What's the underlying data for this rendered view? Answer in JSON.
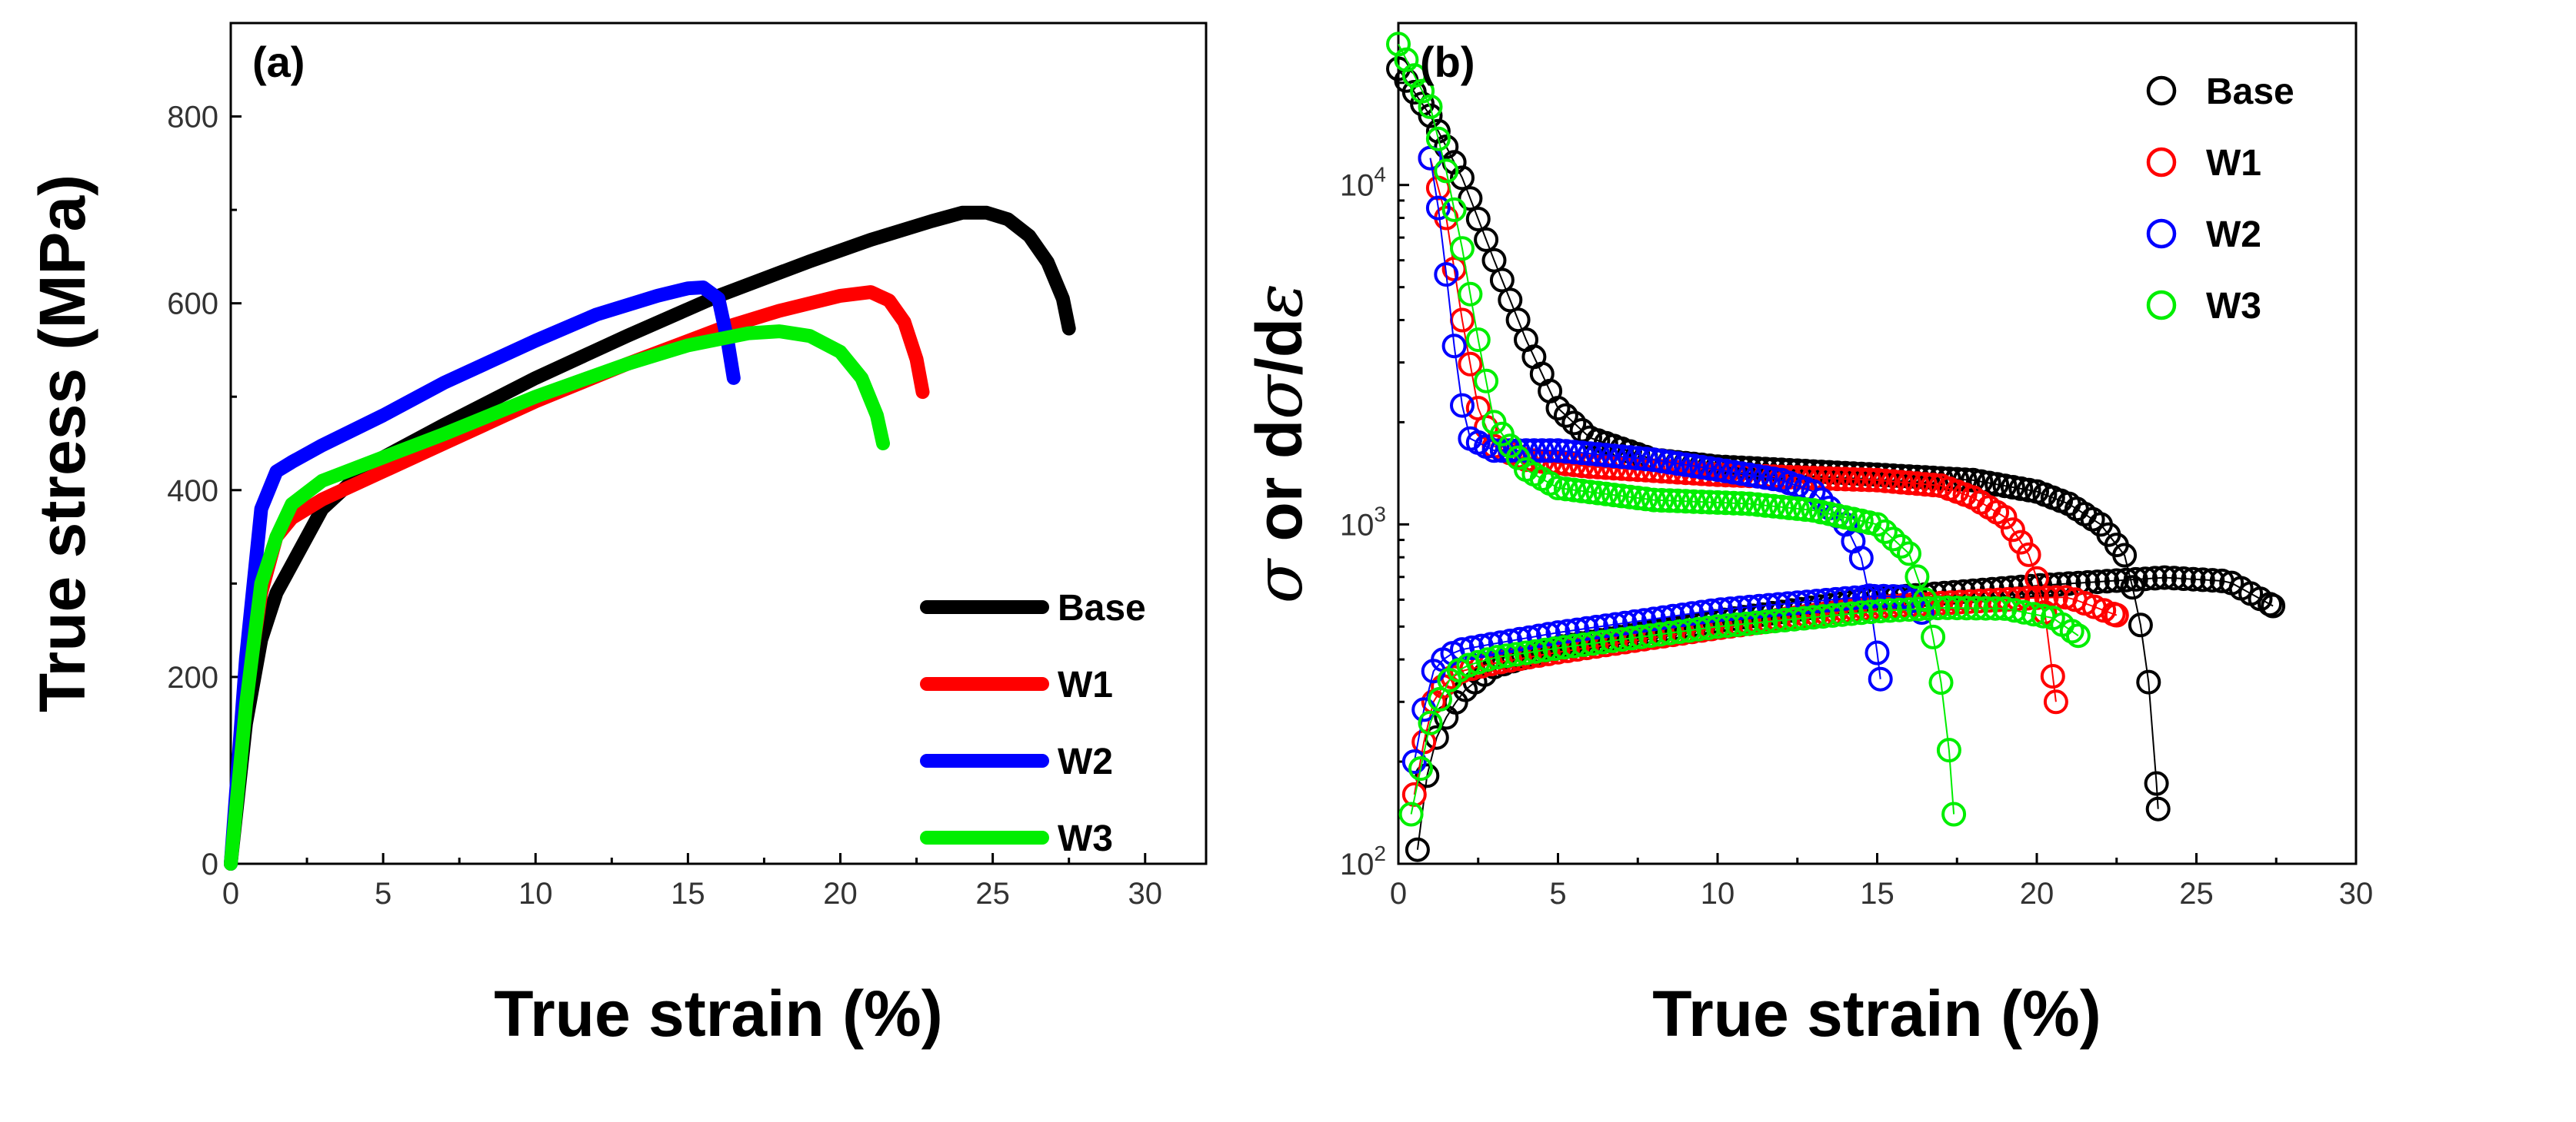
{
  "chart_data": [
    {
      "type": "line",
      "panel_label": "(a)",
      "xlabel": "True strain (%)",
      "ylabel": "True stress (MPa)",
      "xlim": [
        0,
        32
      ],
      "ylim": [
        0,
        900
      ],
      "x_ticks": [
        "0",
        "5",
        "10",
        "15",
        "20",
        "25",
        "30"
      ],
      "y_ticks": [
        "0",
        "200",
        "400",
        "600",
        "800"
      ],
      "legend_position": "bottom-right",
      "series": [
        {
          "name": "Base",
          "color": "#000000",
          "x": [
            0,
            0.5,
            1,
            1.5,
            2,
            3,
            4,
            5,
            7,
            10,
            13,
            16,
            19,
            21,
            23,
            24,
            24.8,
            25.5,
            26.2,
            26.8,
            27.3,
            27.5
          ],
          "y": [
            0,
            150,
            240,
            290,
            320,
            380,
            410,
            435,
            470,
            520,
            565,
            608,
            645,
            668,
            688,
            697,
            697,
            690,
            672,
            644,
            605,
            573
          ]
        },
        {
          "name": "W1",
          "color": "#ff0000",
          "x": [
            0,
            0.5,
            1,
            1.5,
            2,
            3,
            5,
            7,
            10,
            13,
            16,
            18,
            20,
            21,
            21.6,
            22.1,
            22.5,
            22.7
          ],
          "y": [
            0,
            180,
            290,
            350,
            370,
            390,
            420,
            450,
            495,
            535,
            572,
            592,
            608,
            612,
            603,
            580,
            540,
            505
          ]
        },
        {
          "name": "W2",
          "color": "#0000ff",
          "x": [
            0,
            0.5,
            1,
            1.5,
            2,
            3,
            5,
            7,
            10,
            12,
            14,
            15,
            15.5,
            16,
            16.3,
            16.5
          ],
          "y": [
            0,
            220,
            380,
            420,
            430,
            448,
            480,
            515,
            560,
            588,
            608,
            616,
            617,
            605,
            560,
            520
          ]
        },
        {
          "name": "W3",
          "color": "#00ee00",
          "x": [
            0,
            0.5,
            1,
            1.5,
            2,
            3,
            5,
            7,
            10,
            13,
            15,
            17,
            18,
            19,
            20,
            20.7,
            21.2,
            21.4
          ],
          "y": [
            0,
            170,
            300,
            350,
            385,
            410,
            435,
            460,
            500,
            535,
            555,
            568,
            570,
            565,
            548,
            520,
            480,
            450
          ]
        }
      ]
    },
    {
      "type": "scatter",
      "panel_label": "(b)",
      "xlabel": "True strain (%)",
      "ylabel": "σ or dσ/dε",
      "ylabel_parts": {
        "s1": "σ",
        "or": " or d",
        "s2": "σ",
        "slash": "/d",
        "e": "ε"
      },
      "y_scale": "log",
      "xlim": [
        0,
        30
      ],
      "ylim": [
        100,
        30000
      ],
      "x_ticks": [
        "0",
        "5",
        "10",
        "15",
        "20",
        "25",
        "30"
      ],
      "y_ticks": [
        {
          "base": "10",
          "exp": "2"
        },
        {
          "base": "10",
          "exp": "3"
        },
        {
          "base": "10",
          "exp": "4"
        }
      ],
      "legend_position": "top-right",
      "series": [
        {
          "name": "Base",
          "color": "#000000",
          "stress": {
            "x_start": 0.6,
            "x_end": 27.4,
            "points": [
              [
                0.6,
                110
              ],
              [
                1,
                215
              ],
              [
                1.5,
                270
              ],
              [
                2,
                320
              ],
              [
                3,
                380
              ],
              [
                5,
                435
              ],
              [
                10,
                520
              ],
              [
                15,
                605
              ],
              [
                20,
                660
              ],
              [
                24,
                697
              ],
              [
                26,
                680
              ],
              [
                27.4,
                575
              ]
            ]
          },
          "hardening": {
            "x_start": 0,
            "x_end": 23.8,
            "points": [
              [
                0,
                22000
              ],
              [
                1,
                16000
              ],
              [
                2,
                10500
              ],
              [
                3,
                6000
              ],
              [
                4,
                3500
              ],
              [
                5,
                2200
              ],
              [
                6,
                1800
              ],
              [
                8,
                1550
              ],
              [
                10,
                1480
              ],
              [
                15,
                1400
              ],
              [
                18,
                1350
              ],
              [
                20,
                1250
              ],
              [
                21,
                1150
              ],
              [
                22,
                1000
              ],
              [
                22.8,
                800
              ],
              [
                23.3,
                480
              ],
              [
                23.6,
                290
              ],
              [
                23.8,
                145
              ]
            ]
          }
        },
        {
          "name": "W1",
          "color": "#ff0000",
          "stress": {
            "x_start": 0.5,
            "x_end": 22.5,
            "points": [
              [
                0.5,
                160
              ],
              [
                1,
                290
              ],
              [
                1.5,
                345
              ],
              [
                2,
                370
              ],
              [
                3,
                390
              ],
              [
                5,
                420
              ],
              [
                10,
                495
              ],
              [
                15,
                572
              ],
              [
                20,
                608
              ],
              [
                21,
                610
              ],
              [
                22.5,
                540
              ]
            ]
          },
          "hardening": {
            "x_start": 1,
            "x_end": 20.6,
            "points": [
              [
                1,
                12000
              ],
              [
                1.5,
                8000
              ],
              [
                2,
                4000
              ],
              [
                2.5,
                2200
              ],
              [
                3,
                1700
              ],
              [
                4,
                1550
              ],
              [
                6,
                1480
              ],
              [
                10,
                1400
              ],
              [
                15,
                1350
              ],
              [
                17,
                1300
              ],
              [
                18,
                1200
              ],
              [
                19,
                1050
              ],
              [
                19.8,
                800
              ],
              [
                20.2,
                600
              ],
              [
                20.6,
                300
              ]
            ]
          }
        },
        {
          "name": "W2",
          "color": "#0000ff",
          "stress": {
            "x_start": 0.5,
            "x_end": 16.4,
            "points": [
              [
                0.5,
                200
              ],
              [
                1,
                360
              ],
              [
                1.5,
                410
              ],
              [
                2,
                428
              ],
              [
                3,
                445
              ],
              [
                5,
                480
              ],
              [
                10,
                560
              ],
              [
                14,
                605
              ],
              [
                15,
                615
              ],
              [
                16,
                612
              ],
              [
                16.4,
                550
              ]
            ]
          },
          "hardening": {
            "x_start": 1,
            "x_end": 15.1,
            "points": [
              [
                1,
                12000
              ],
              [
                1.3,
                8000
              ],
              [
                1.6,
                4500
              ],
              [
                1.9,
                2500
              ],
              [
                2.2,
                1800
              ],
              [
                3,
                1650
              ],
              [
                5,
                1650
              ],
              [
                8,
                1550
              ],
              [
                10,
                1450
              ],
              [
                12,
                1350
              ],
              [
                13,
                1250
              ],
              [
                14,
                1000
              ],
              [
                14.6,
                760
              ],
              [
                14.9,
                500
              ],
              [
                15.1,
                350
              ]
            ]
          }
        },
        {
          "name": "W3",
          "color": "#00ee00",
          "stress": {
            "x_start": 0.4,
            "x_end": 21.3,
            "points": [
              [
                0.4,
                140
              ],
              [
                1,
                260
              ],
              [
                1.5,
                340
              ],
              [
                2,
                380
              ],
              [
                3,
                405
              ],
              [
                5,
                432
              ],
              [
                10,
                500
              ],
              [
                15,
                555
              ],
              [
                17,
                568
              ],
              [
                19,
                565
              ],
              [
                20.5,
                530
              ],
              [
                21.3,
                470
              ]
            ]
          },
          "hardening": {
            "x_start": 0,
            "x_end": 17.4,
            "points": [
              [
                0,
                26000
              ],
              [
                1,
                17000
              ],
              [
                1.5,
                11000
              ],
              [
                2,
                6500
              ],
              [
                2.5,
                3500
              ],
              [
                3,
                2000
              ],
              [
                4,
                1450
              ],
              [
                5,
                1280
              ],
              [
                8,
                1180
              ],
              [
                11,
                1150
              ],
              [
                13,
                1100
              ],
              [
                15,
                1000
              ],
              [
                16,
                820
              ],
              [
                16.5,
                600
              ],
              [
                16.9,
                400
              ],
              [
                17.2,
                250
              ],
              [
                17.4,
                140
              ]
            ]
          }
        }
      ]
    }
  ]
}
